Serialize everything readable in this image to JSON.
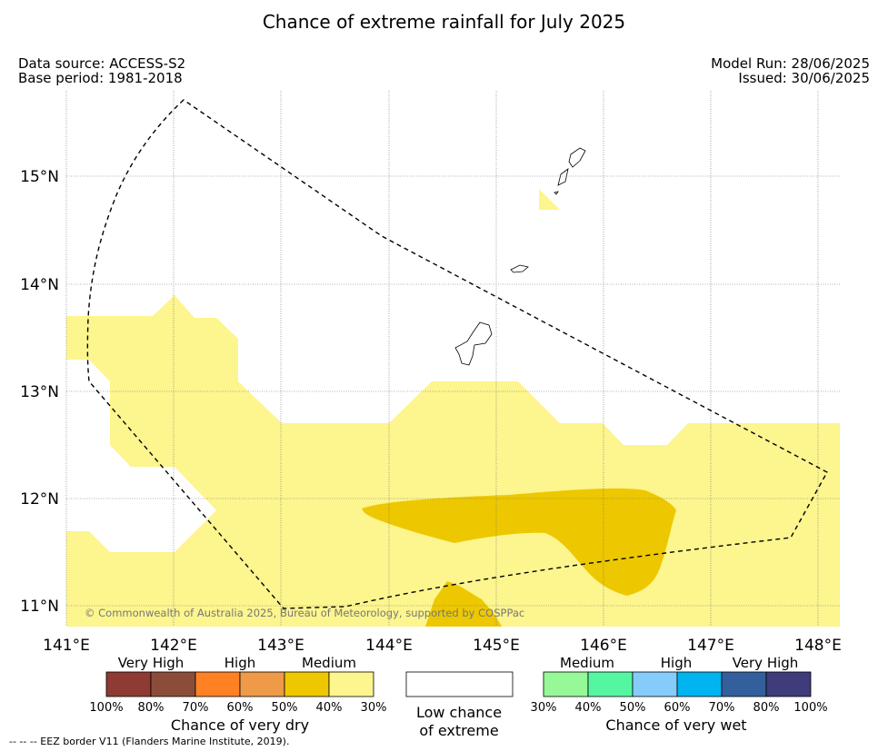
{
  "title": "Chance of extreme rainfall for July 2025",
  "meta": {
    "data_source": "Data source: ACCESS-S2",
    "base_period": "Base period: 1981-2018",
    "model_run": "Model Run: 28/06/2025",
    "issued": "Issued: 30/06/2025"
  },
  "map": {
    "lon_range": [
      141,
      148.2
    ],
    "lat_range": [
      10.8,
      15.8
    ],
    "lon_ticks": [
      "141°E",
      "142°E",
      "143°E",
      "144°E",
      "145°E",
      "146°E",
      "147°E",
      "148°E"
    ],
    "lat_ticks": [
      "15°N",
      "14°N",
      "13°N",
      "12°N",
      "11°N"
    ],
    "grid": true,
    "copyright": "© Commonwealth of Australia 2025, Bureau of Meteorology, supported by COSPPac"
  },
  "legend": {
    "dry": {
      "groups": [
        "Very High",
        "High",
        "Medium"
      ],
      "colors": [
        "#8e3b33",
        "#8b4d3a",
        "#ff8123",
        "#ee9a48",
        "#edc800",
        "#fdf58e"
      ],
      "ticks": [
        "100%",
        "80%",
        "70%",
        "60%",
        "50%",
        "40%",
        "30%"
      ],
      "title": "Chance of very dry"
    },
    "low": {
      "line1": "Low chance",
      "line2": "of extreme"
    },
    "wet": {
      "groups": [
        "Medium",
        "High",
        "Very High"
      ],
      "colors": [
        "#96f896",
        "#55f6a2",
        "#86ccfa",
        "#00b4f0",
        "#335f9d",
        "#3f3c7c"
      ],
      "ticks": [
        "30%",
        "40%",
        "50%",
        "60%",
        "70%",
        "80%",
        "100%"
      ],
      "title": "Chance of very wet"
    }
  },
  "footnote": "--  --  -- EEZ border V11 (Flanders Marine Institute, 2019)."
}
